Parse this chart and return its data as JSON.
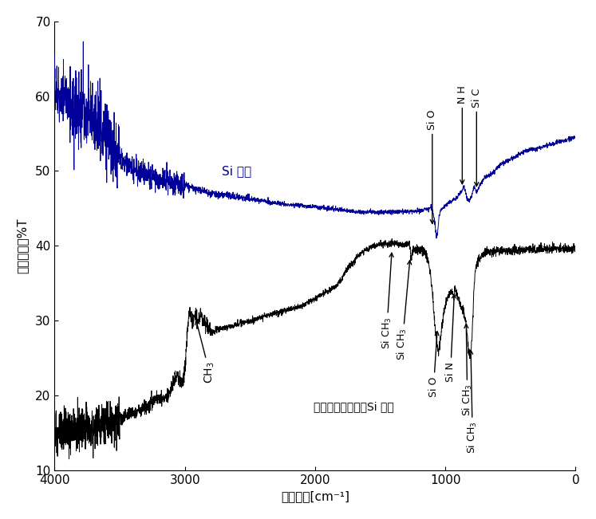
{
  "xlabel_wavenumber": "波数",
  "xlabel_unit": "[cm⁻¹]",
  "ylabel_transmittance": "透過率",
  "ylabel_pct": "%T",
  "xlim": [
    4000,
    0
  ],
  "ylim": [
    10,
    70
  ],
  "yticks": [
    10,
    20,
    30,
    40,
    50,
    60,
    70
  ],
  "xticks": [
    4000,
    3000,
    2000,
    1000,
    0
  ],
  "bg_color": "#ffffff",
  "line_color_blue": "#000099",
  "line_color_black": "#000000",
  "label_si_substrate": "Si 基板",
  "label_plasma": "プラズマ重合膜／Si 基板"
}
